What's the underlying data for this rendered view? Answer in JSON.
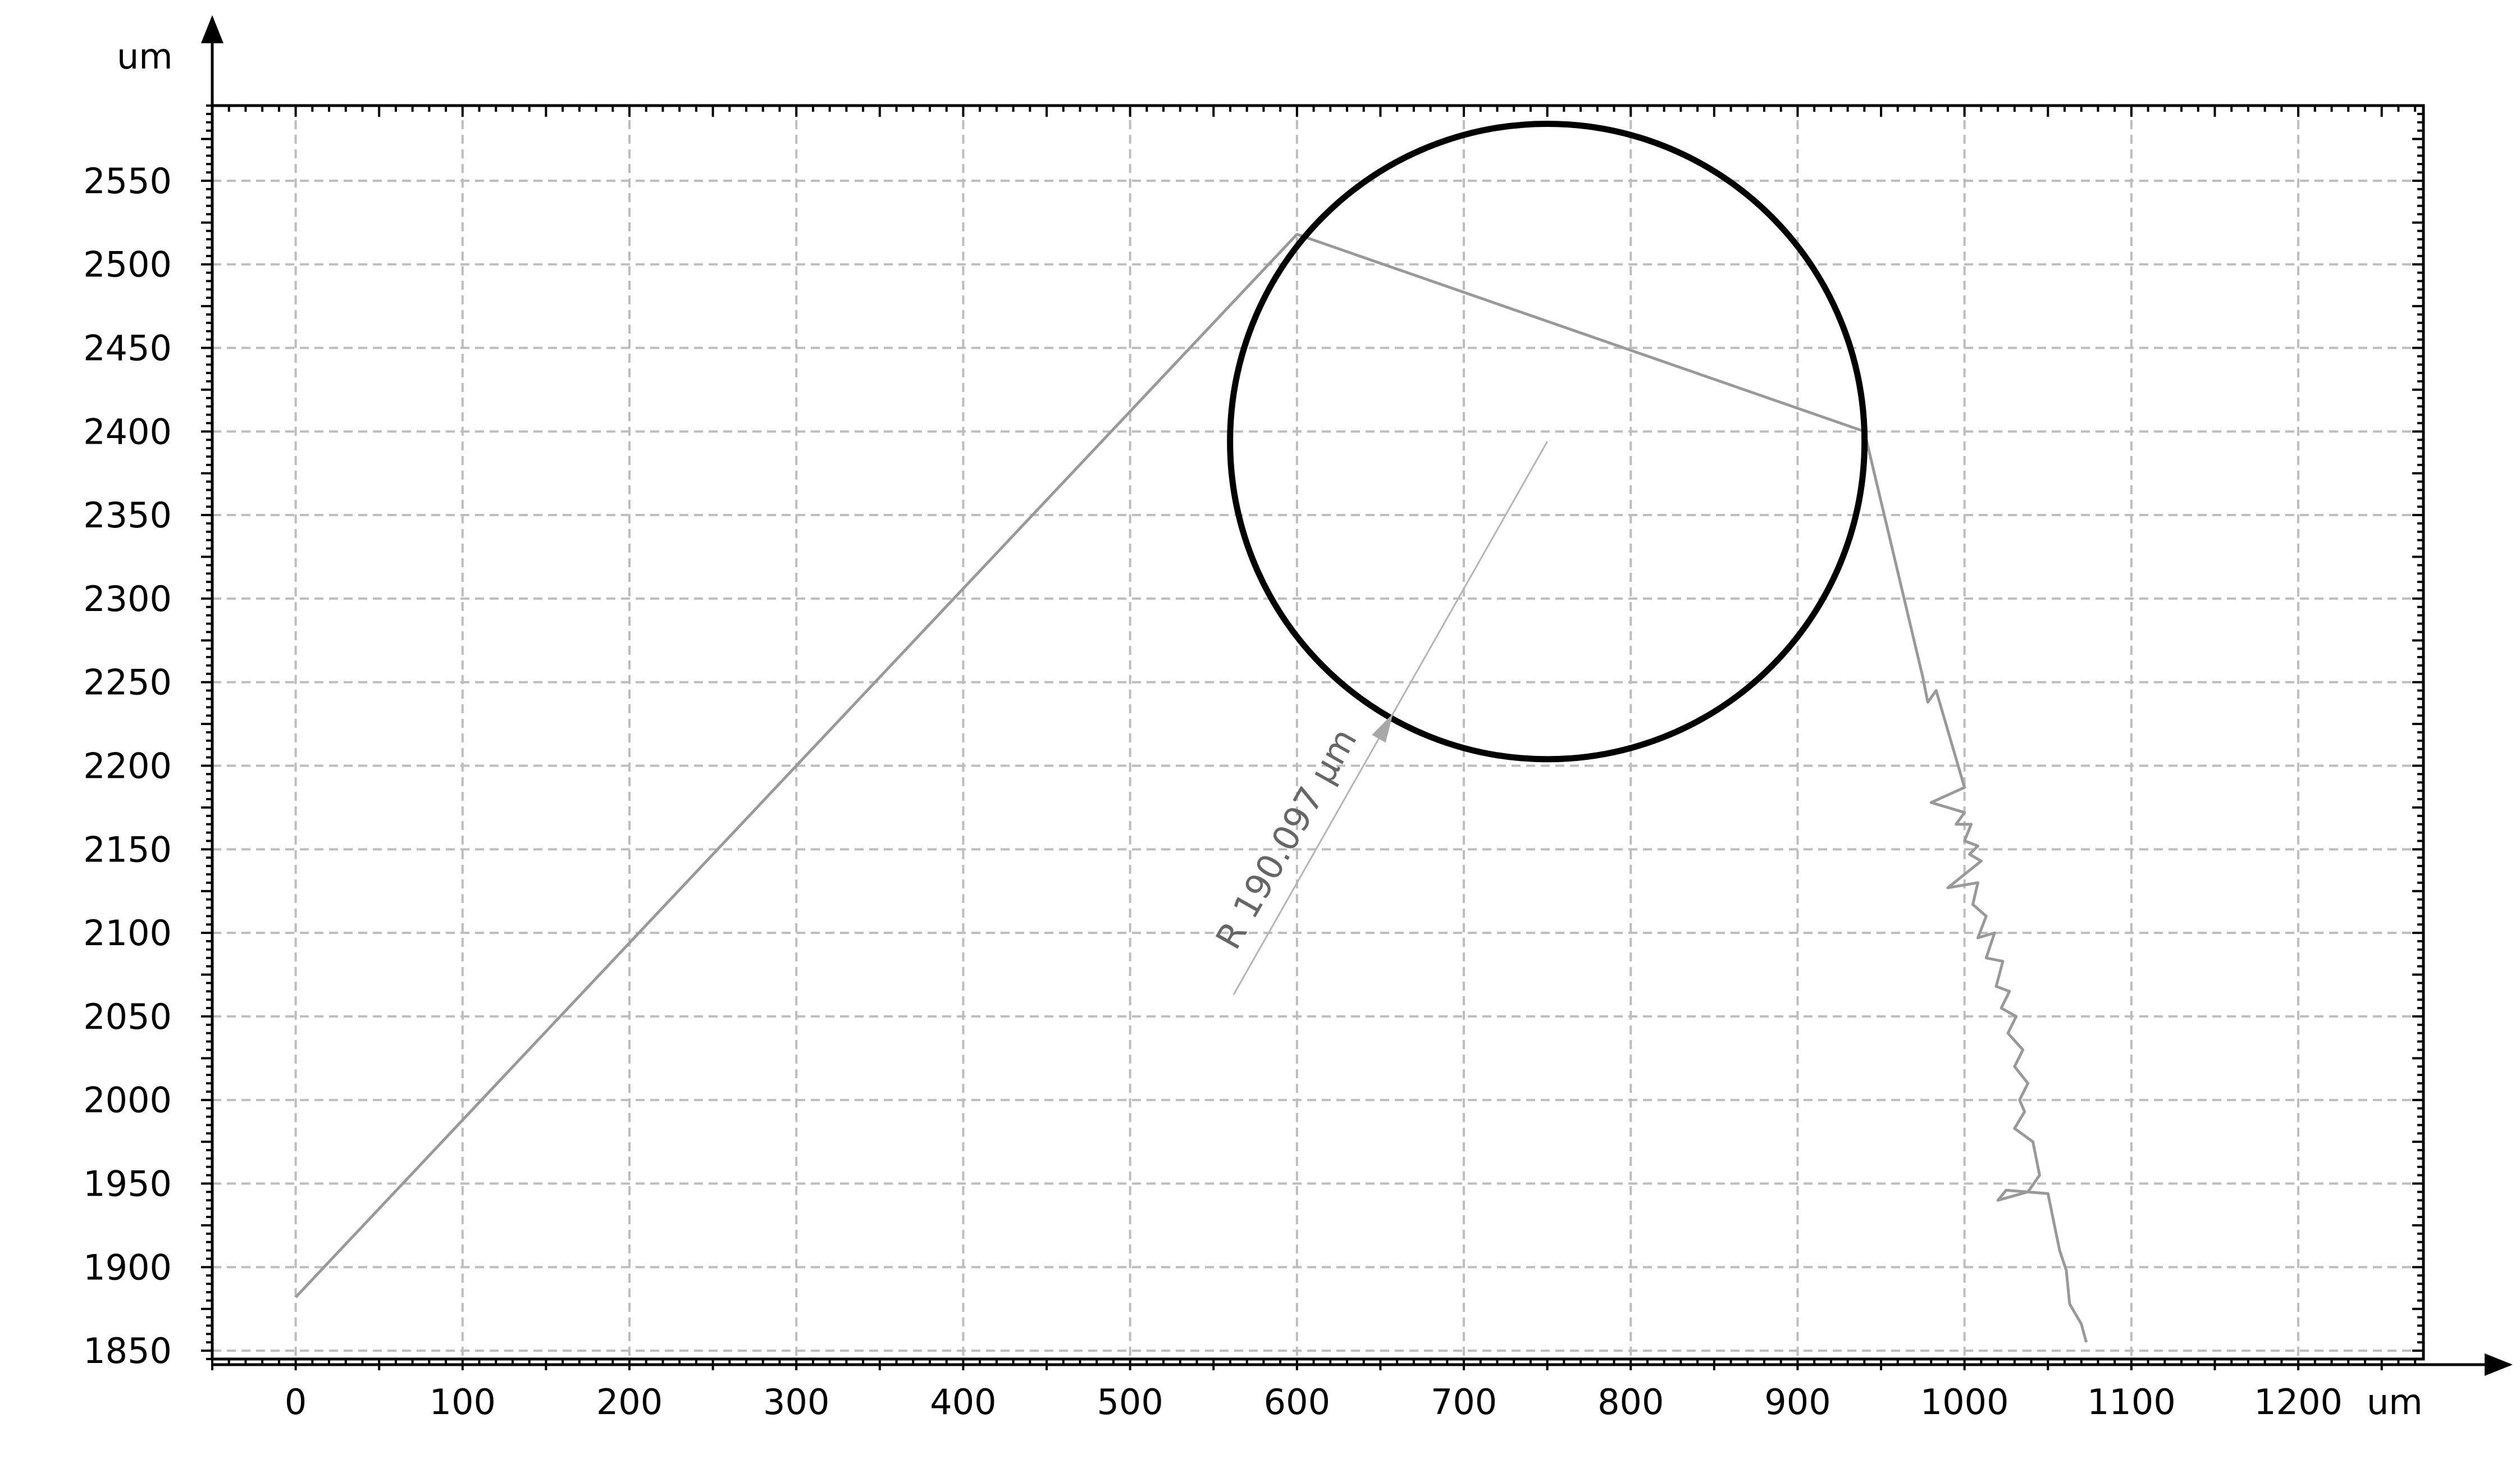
{
  "chart_data": {
    "type": "line",
    "title": "",
    "x_unit": "um",
    "y_unit": "um",
    "xlim": [
      -50,
      1275
    ],
    "ylim": [
      1845,
      2595
    ],
    "x_ticks": [
      0,
      100,
      200,
      300,
      400,
      500,
      600,
      700,
      800,
      900,
      1000,
      1100,
      1200
    ],
    "y_ticks": [
      1850,
      1900,
      1950,
      2000,
      2050,
      2100,
      2150,
      2200,
      2250,
      2300,
      2350,
      2400,
      2450,
      2500,
      2550
    ],
    "x_tick_labels": [
      "0",
      "100",
      "200",
      "300",
      "400",
      "500",
      "600",
      "700",
      "800",
      "900",
      "1000",
      "1100",
      "1200"
    ],
    "y_tick_labels": [
      "1850",
      "1900",
      "1950",
      "2000",
      "2050",
      "2100",
      "2150",
      "2200",
      "2250",
      "2300",
      "2350",
      "2400",
      "2450",
      "2500",
      "2550"
    ],
    "grid": true,
    "series": [
      {
        "points": [
          [
            0,
            1882
          ],
          [
            600,
            2518
          ],
          [
            940,
            2400
          ],
          [
            975,
            2253
          ],
          [
            978,
            2238
          ],
          [
            983,
            2245
          ],
          [
            1000,
            2187
          ],
          [
            980,
            2178
          ],
          [
            1000,
            2172
          ],
          [
            995,
            2165
          ],
          [
            1004,
            2165
          ],
          [
            1000,
            2155
          ],
          [
            1008,
            2152
          ],
          [
            1003,
            2147
          ],
          [
            1010,
            2143
          ],
          [
            990,
            2127
          ],
          [
            1008,
            2130
          ],
          [
            1005,
            2117
          ],
          [
            1013,
            2110
          ],
          [
            1008,
            2097
          ],
          [
            1018,
            2100
          ],
          [
            1013,
            2085
          ],
          [
            1023,
            2083
          ],
          [
            1019,
            2068
          ],
          [
            1027,
            2065
          ],
          [
            1022,
            2055
          ],
          [
            1031,
            2050
          ],
          [
            1026,
            2040
          ],
          [
            1035,
            2030
          ],
          [
            1030,
            2020
          ],
          [
            1038,
            2010
          ],
          [
            1033,
            2000
          ],
          [
            1036,
            1993
          ],
          [
            1030,
            1983
          ],
          [
            1041,
            1975
          ],
          [
            1045,
            1955
          ],
          [
            1038,
            1945
          ],
          [
            1020,
            1940
          ],
          [
            1025,
            1946
          ],
          [
            1050,
            1944
          ],
          [
            1057,
            1910
          ],
          [
            1061,
            1898
          ],
          [
            1063,
            1878
          ],
          [
            1070,
            1866
          ],
          [
            1073,
            1855
          ]
        ]
      }
    ],
    "circle": {
      "cx": 750,
      "cy": 2394,
      "r": 190.097
    },
    "radius_annotation": {
      "label": "R 190.097 μm",
      "from": [
        562,
        2063
      ],
      "to": [
        750,
        2394
      ]
    }
  }
}
